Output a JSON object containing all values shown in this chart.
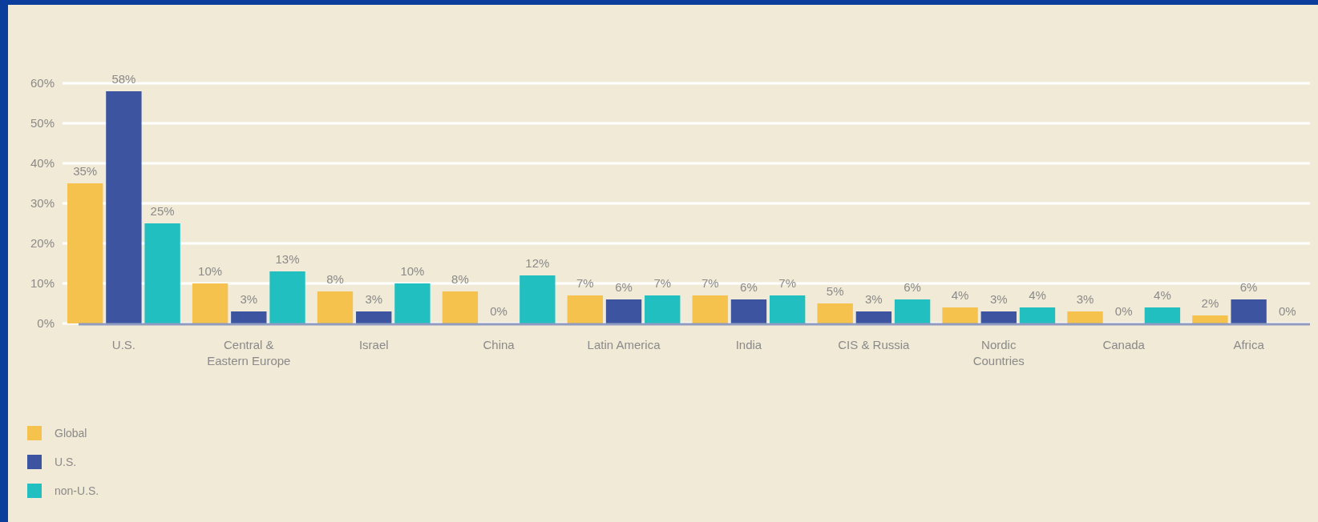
{
  "chart_data": {
    "type": "bar",
    "categories": [
      "U.S.",
      "Central & Eastern Europe",
      "Israel",
      "China",
      "Latin America",
      "India",
      "CIS & Russia",
      "Nordic Countries",
      "Canada",
      "Africa"
    ],
    "series": [
      {
        "name": "Global",
        "color": "#f4c24d",
        "values": [
          35,
          10,
          8,
          8,
          7,
          7,
          5,
          4,
          3,
          2
        ]
      },
      {
        "name": "U.S.",
        "color": "#3d55a0",
        "values": [
          58,
          3,
          3,
          0,
          6,
          6,
          3,
          3,
          0,
          6
        ]
      },
      {
        "name": "non-U.S.",
        "color": "#22bfc0",
        "values": [
          25,
          13,
          10,
          12,
          7,
          7,
          6,
          4,
          4,
          0
        ]
      }
    ],
    "ylim": [
      0,
      60
    ],
    "yticks": [
      {
        "value": 0,
        "label": "0%"
      },
      {
        "value": 10,
        "label": "10%"
      },
      {
        "value": 20,
        "label": "20%"
      },
      {
        "value": 30,
        "label": "30%"
      },
      {
        "value": 40,
        "label": "40%"
      },
      {
        "value": 50,
        "label": "50%"
      },
      {
        "value": 60,
        "label": "60%"
      }
    ],
    "value_labels": [
      [
        "35%",
        "10%",
        "8%",
        "8%",
        "7%",
        "7%",
        "5%",
        "4%",
        "3%",
        "2%"
      ],
      [
        "58%",
        "3%",
        "3%",
        "0%",
        "6%",
        "6%",
        "3%",
        "3%",
        "0%",
        "6%"
      ],
      [
        "25%",
        "13%",
        "10%",
        "12%",
        "7%",
        "7%",
        "6%",
        "4%",
        "4%",
        "0%"
      ]
    ],
    "grid": "y",
    "legend": "bottom left"
  }
}
